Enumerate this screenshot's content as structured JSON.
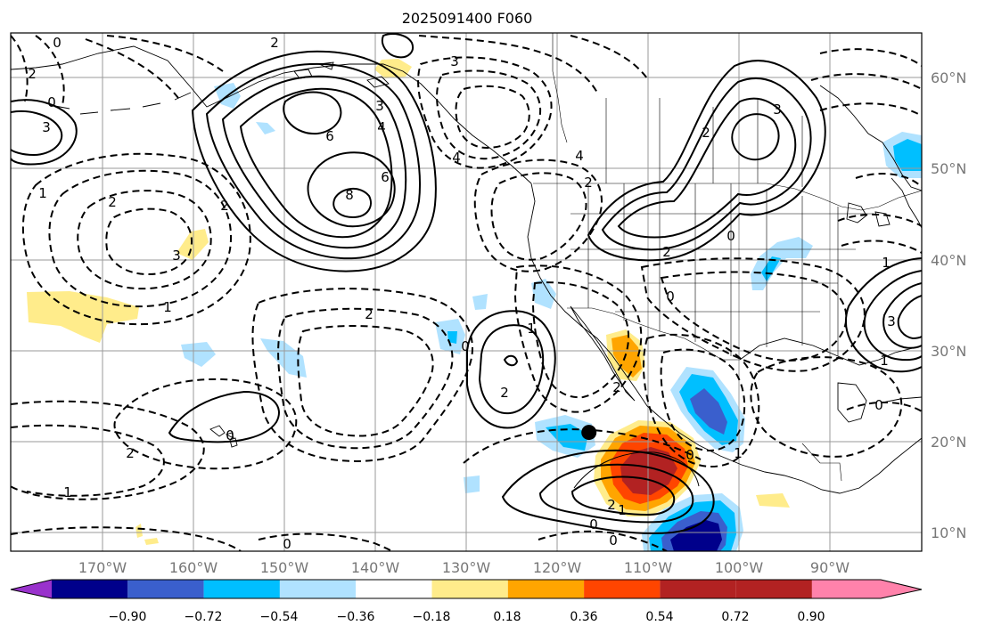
{
  "title": "2025091400 F060",
  "axes": {
    "x_ticks": [
      {
        "value": -170,
        "label": "170°W"
      },
      {
        "value": -160,
        "label": "160°W"
      },
      {
        "value": -150,
        "label": "150°W"
      },
      {
        "value": -140,
        "label": "140°W"
      },
      {
        "value": -130,
        "label": "130°W"
      },
      {
        "value": -120,
        "label": "120°W"
      },
      {
        "value": -110,
        "label": "110°W"
      },
      {
        "value": -100,
        "label": "100°W"
      },
      {
        "value": -90,
        "label": "90°W"
      }
    ],
    "y_ticks": [
      {
        "value": 10,
        "label": "10°N"
      },
      {
        "value": 20,
        "label": "20°N"
      },
      {
        "value": 30,
        "label": "30°N"
      },
      {
        "value": 40,
        "label": "40°N"
      },
      {
        "value": 50,
        "label": "50°N"
      },
      {
        "value": 60,
        "label": "60°N"
      }
    ],
    "lon_range": [
      -180,
      -80
    ],
    "lat_range": [
      8,
      65
    ],
    "grid": true
  },
  "colorbar": {
    "extend": "both",
    "colors": [
      "#9932cc",
      "#00008b",
      "#3a5fcd",
      "#00bfff",
      "#b0e2ff",
      "#ffffff",
      "#ffec8b",
      "#ffa500",
      "#ff4500",
      "#b22222",
      "#ff82ab"
    ],
    "labels": [
      "−0.90",
      "−0.72",
      "−0.54",
      "−0.36",
      "−0.18",
      "0.18",
      "0.36",
      "0.54",
      "0.72",
      "0.90"
    ]
  },
  "contour_labels": [
    "2",
    "0",
    "2",
    "3",
    "1",
    "6",
    "8",
    "6",
    "4",
    "3",
    "4",
    "3",
    "2",
    "2",
    "2",
    "4",
    "3",
    "2",
    "0",
    "0",
    "2",
    "3",
    "1",
    "2",
    "1",
    "2",
    "0",
    "2",
    "3",
    "1",
    "0",
    "0",
    "1",
    "0",
    "0",
    "1",
    "2",
    "0",
    "0",
    "1",
    "0",
    "2",
    "1"
  ],
  "storm_marker": {
    "lon": -116.5,
    "lat": 21
  }
}
